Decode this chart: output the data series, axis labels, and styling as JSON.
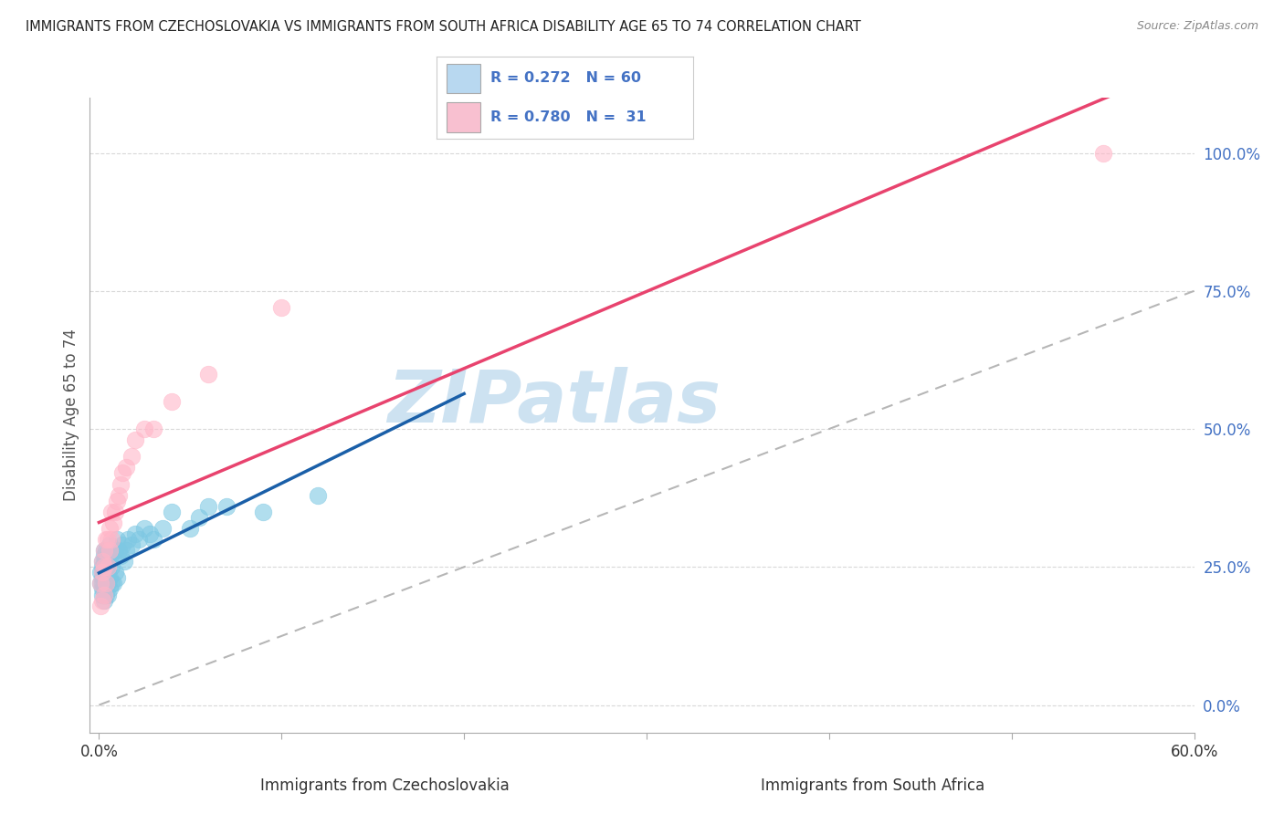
{
  "title": "IMMIGRANTS FROM CZECHOSLOVAKIA VS IMMIGRANTS FROM SOUTH AFRICA DISABILITY AGE 65 TO 74 CORRELATION CHART",
  "source": "Source: ZipAtlas.com",
  "xlabel_czechosl": "Immigrants from Czechoslovakia",
  "xlabel_southafrica": "Immigrants from South Africa",
  "ylabel": "Disability Age 65 to 74",
  "watermark": "ZIPatlas",
  "xlim": [
    -0.005,
    0.6
  ],
  "ylim": [
    -0.05,
    1.1
  ],
  "yticks_right": [
    0.0,
    0.25,
    0.5,
    0.75,
    1.0
  ],
  "ytick_labels_right": [
    "0.0%",
    "25.0%",
    "50.0%",
    "75.0%",
    "100.0%"
  ],
  "R_czechosl": 0.272,
  "N_czechosl": 60,
  "R_southafrica": 0.78,
  "N_southafrica": 31,
  "color_czechosl": "#7ec8e3",
  "color_southafrica": "#ffb6c8",
  "line_color_czechosl": "#1a5fa8",
  "line_color_southafrica": "#e8436e",
  "legend_box_color_czechosl": "#b8d8f0",
  "legend_box_color_southafrica": "#f8c0d0",
  "grid_color": "#d0d0d0",
  "background_color": "#ffffff",
  "title_color": "#222222",
  "watermark_color": "#c8dff0",
  "czechosl_x": [
    0.001,
    0.001,
    0.002,
    0.002,
    0.002,
    0.002,
    0.002,
    0.002,
    0.002,
    0.003,
    0.003,
    0.003,
    0.003,
    0.003,
    0.003,
    0.003,
    0.003,
    0.003,
    0.003,
    0.004,
    0.004,
    0.004,
    0.004,
    0.004,
    0.005,
    0.005,
    0.005,
    0.005,
    0.006,
    0.006,
    0.006,
    0.006,
    0.007,
    0.007,
    0.008,
    0.008,
    0.009,
    0.009,
    0.01,
    0.01,
    0.011,
    0.012,
    0.013,
    0.014,
    0.015,
    0.016,
    0.018,
    0.02,
    0.022,
    0.025,
    0.028,
    0.03,
    0.035,
    0.04,
    0.05,
    0.055,
    0.06,
    0.07,
    0.09,
    0.12
  ],
  "czechosl_y": [
    0.22,
    0.24,
    0.2,
    0.21,
    0.22,
    0.23,
    0.24,
    0.25,
    0.26,
    0.19,
    0.2,
    0.21,
    0.22,
    0.23,
    0.24,
    0.25,
    0.26,
    0.27,
    0.28,
    0.2,
    0.22,
    0.24,
    0.26,
    0.28,
    0.2,
    0.22,
    0.24,
    0.27,
    0.21,
    0.23,
    0.26,
    0.29,
    0.22,
    0.25,
    0.22,
    0.28,
    0.24,
    0.28,
    0.23,
    0.3,
    0.28,
    0.27,
    0.29,
    0.26,
    0.28,
    0.3,
    0.29,
    0.31,
    0.3,
    0.32,
    0.31,
    0.3,
    0.32,
    0.35,
    0.32,
    0.34,
    0.36,
    0.36,
    0.35,
    0.38
  ],
  "southafrica_x": [
    0.001,
    0.001,
    0.002,
    0.002,
    0.002,
    0.003,
    0.003,
    0.003,
    0.004,
    0.004,
    0.005,
    0.005,
    0.006,
    0.006,
    0.007,
    0.007,
    0.008,
    0.009,
    0.01,
    0.011,
    0.012,
    0.013,
    0.015,
    0.018,
    0.02,
    0.025,
    0.03,
    0.04,
    0.06,
    0.1,
    0.55
  ],
  "southafrica_y": [
    0.18,
    0.22,
    0.19,
    0.24,
    0.26,
    0.2,
    0.25,
    0.28,
    0.22,
    0.3,
    0.25,
    0.3,
    0.28,
    0.32,
    0.3,
    0.35,
    0.33,
    0.35,
    0.37,
    0.38,
    0.4,
    0.42,
    0.43,
    0.45,
    0.48,
    0.5,
    0.5,
    0.55,
    0.6,
    0.72,
    1.0
  ]
}
